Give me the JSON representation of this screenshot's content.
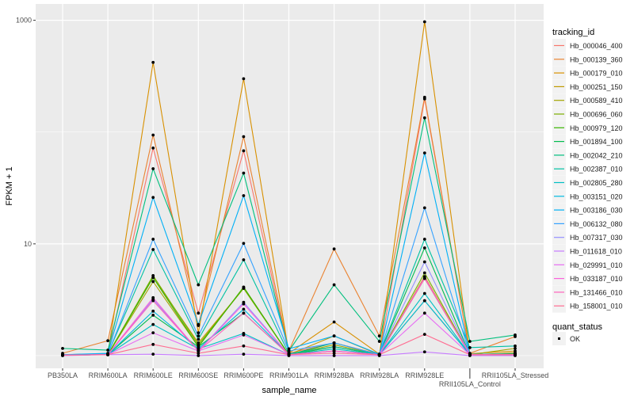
{
  "chart_data": {
    "type": "line",
    "xlabel": "sample_name",
    "ylabel": "FPKM + 1",
    "y_scale": "log10",
    "ylim": [
      0.77,
      1400
    ],
    "y_ticks": [
      10,
      1000
    ],
    "y_tick_labels": [
      "10",
      "1000"
    ],
    "grid": true,
    "legend_position": "right",
    "categories": [
      "PB350LA",
      "RRIM600LA",
      "RRIM600LE",
      "RRIM600SE",
      "RRIM600PE",
      "RRIM901LA",
      "RRIM928BA",
      "RRIM928LA",
      "RRIM928LE",
      "RRII105LA_Control",
      "RRII105LA_Stressed"
    ],
    "legend_title": "tracking_id",
    "series": [
      {
        "name": "Hb_000046_400",
        "color": "#F8766D",
        "values": [
          1.02,
          1.03,
          72,
          2.4,
          68,
          1.05,
          1.3,
          1.03,
          198,
          1.03,
          1.03
        ]
      },
      {
        "name": "Hb_000139_360",
        "color": "#EA8331",
        "values": [
          1.05,
          1.36,
          94,
          1.86,
          91,
          1.1,
          9.0,
          1.5,
          205,
          1.05,
          1.48
        ]
      },
      {
        "name": "Hb_000179_010",
        "color": "#D89000",
        "values": [
          1.02,
          1.04,
          420,
          1.6,
          300,
          1.05,
          2.0,
          1.03,
          970,
          1.04,
          1.1
        ]
      },
      {
        "name": "Hb_000251_150",
        "color": "#C09B00",
        "values": [
          1.01,
          1.02,
          5.0,
          1.3,
          4.0,
          1.02,
          1.5,
          1.02,
          5.1,
          1.02,
          1.06
        ]
      },
      {
        "name": "Hb_000589_410",
        "color": "#A3A500",
        "values": [
          1.01,
          1.02,
          4.6,
          1.2,
          4.1,
          1.02,
          1.25,
          1.02,
          3.1,
          1.02,
          1.16
        ]
      },
      {
        "name": "Hb_000696_060",
        "color": "#7CAE00",
        "values": [
          1.01,
          1.02,
          5.2,
          1.25,
          4.0,
          1.02,
          1.2,
          1.02,
          5.5,
          1.02,
          1.05
        ]
      },
      {
        "name": "Hb_000979_120",
        "color": "#39B600",
        "values": [
          1.01,
          1.02,
          5.0,
          1.2,
          4.1,
          1.02,
          1.2,
          1.02,
          4.9,
          1.02,
          1.04
        ]
      },
      {
        "name": "Hb_001894_100",
        "color": "#00BB4E",
        "values": [
          1.01,
          1.02,
          2.3,
          1.2,
          2.4,
          1.02,
          1.3,
          1.02,
          9.2,
          1.02,
          1.03
        ]
      },
      {
        "name": "Hb_002042_210",
        "color": "#00BF7D",
        "values": [
          1.16,
          1.12,
          47,
          4.3,
          43,
          1.1,
          4.3,
          1.34,
          134,
          1.34,
          1.53
        ]
      },
      {
        "name": "Hb_002387_010",
        "color": "#00C1A3",
        "values": [
          1.02,
          1.04,
          8.9,
          1.4,
          7.2,
          1.04,
          1.2,
          1.03,
          11,
          1.18,
          1.22
        ]
      },
      {
        "name": "Hb_002805_280",
        "color": "#00BFC4",
        "values": [
          1.01,
          1.02,
          1.9,
          1.15,
          1.58,
          1.02,
          1.15,
          1.02,
          3.6,
          1.02,
          1.03
        ]
      },
      {
        "name": "Hb_003151_020",
        "color": "#00BAE0",
        "values": [
          1.01,
          1.02,
          2.5,
          1.15,
          2.6,
          1.02,
          1.1,
          1.02,
          3.1,
          1.02,
          1.03
        ]
      },
      {
        "name": "Hb_003186_030",
        "color": "#00B0F6",
        "values": [
          1.02,
          1.05,
          26,
          1.9,
          27,
          1.15,
          1.5,
          1.03,
          65,
          1.03,
          1.03
        ]
      },
      {
        "name": "Hb_006132_080",
        "color": "#35A2FF",
        "values": [
          1.01,
          1.03,
          11,
          1.5,
          10.1,
          1.1,
          1.3,
          1.02,
          21,
          1.02,
          1.03
        ]
      },
      {
        "name": "Hb_007317_030",
        "color": "#9590FF",
        "values": [
          1.01,
          1.02,
          3.2,
          1.1,
          3.0,
          1.02,
          1.1,
          1.02,
          6.9,
          1.02,
          1.02
        ]
      },
      {
        "name": "Hb_011618_010",
        "color": "#C77CFF",
        "values": [
          1.0,
          1.02,
          1.03,
          1.0,
          1.03,
          1.0,
          1.0,
          1.0,
          1.08,
          1.0,
          1.0
        ]
      },
      {
        "name": "Hb_029991_010",
        "color": "#E76BF3",
        "values": [
          1.01,
          1.02,
          1.6,
          1.1,
          1.53,
          1.02,
          1.1,
          1.02,
          2.4,
          1.02,
          1.02
        ]
      },
      {
        "name": "Hb_033187_010",
        "color": "#FA62DB",
        "values": [
          1.01,
          1.02,
          3.3,
          1.1,
          2.9,
          1.02,
          1.1,
          1.02,
          5.0,
          1.02,
          1.02
        ]
      },
      {
        "name": "Hb_131466_010",
        "color": "#FF62BC",
        "values": [
          1.01,
          1.02,
          3.1,
          1.1,
          2.4,
          1.02,
          1.1,
          1.02,
          4.9,
          1.02,
          1.02
        ]
      },
      {
        "name": "Hb_158001_010",
        "color": "#FF6C91",
        "values": [
          1.01,
          1.02,
          1.26,
          1.05,
          1.22,
          1.02,
          1.05,
          1.02,
          1.55,
          1.02,
          1.02
        ]
      }
    ],
    "shape_legend": {
      "title": "quant_status",
      "items": [
        "OK"
      ]
    }
  }
}
